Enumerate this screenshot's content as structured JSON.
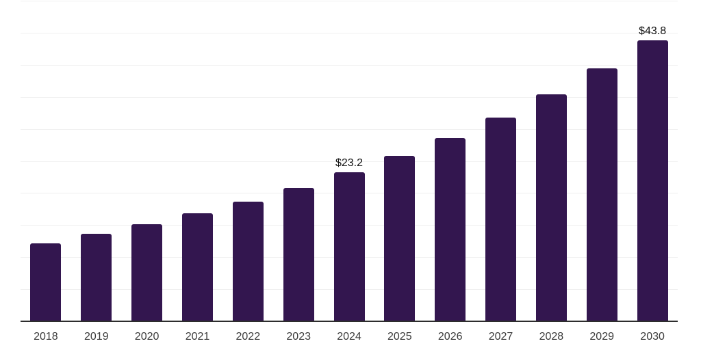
{
  "chart_data": {
    "type": "bar",
    "title": "",
    "xlabel": "",
    "ylabel": "",
    "categories": [
      "2018",
      "2019",
      "2020",
      "2021",
      "2022",
      "2023",
      "2024",
      "2025",
      "2026",
      "2027",
      "2028",
      "2029",
      "2030"
    ],
    "values": [
      12.2,
      13.6,
      15.1,
      16.8,
      18.7,
      20.8,
      23.2,
      25.8,
      28.6,
      31.8,
      35.4,
      39.5,
      43.8
    ],
    "value_labels": [
      "",
      "",
      "",
      "",
      "",
      "",
      "$23.2",
      "",
      "",
      "",
      "",
      "",
      "$43.8"
    ],
    "ylim": [
      0,
      50
    ],
    "gridline_interval": 5,
    "grid": true,
    "legend": false,
    "colors": {
      "bar": "#33164F",
      "gridline": "#f0f0f0",
      "axis_line": "#2d2d2d",
      "tick_label": "#3a3a3a",
      "value_label": "#111111",
      "background": "#ffffff"
    }
  }
}
